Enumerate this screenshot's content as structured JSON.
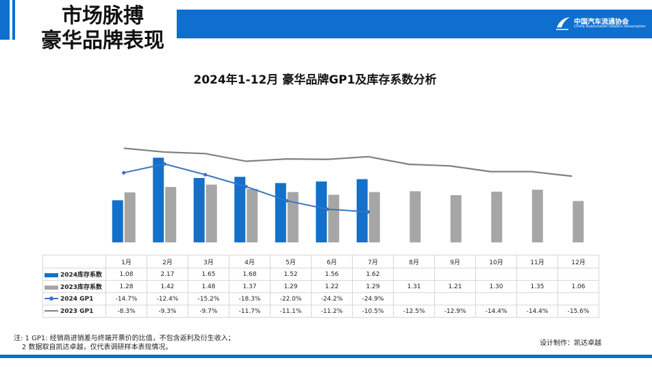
{
  "header": {
    "title_line1": "市场脉搏",
    "title_line2": "豪华品牌表现",
    "logo_cn": "中国汽车流通协会",
    "logo_en": "China Automobile Dealers Association"
  },
  "colors": {
    "accent": "#0e6fcf",
    "bar_2024": "#1470c8",
    "bar_2023": "#a6a6a6",
    "gp1_2024": "#3a74c4",
    "gp1_2023": "#808080"
  },
  "chart_data": {
    "type": "bar",
    "title": "2024年1-12月 豪华品牌GP1及库存系数分析",
    "categories": [
      "1月",
      "2月",
      "3月",
      "4月",
      "5月",
      "6月",
      "7月",
      "8月",
      "9月",
      "10月",
      "11月",
      "12月"
    ],
    "series": [
      {
        "name": "2024库存系数",
        "type": "bar",
        "values": [
          1.08,
          2.17,
          1.65,
          1.68,
          1.52,
          1.56,
          1.62,
          null,
          null,
          null,
          null,
          null
        ],
        "labels": [
          "1.08",
          "2.17",
          "1.65",
          "1.68",
          "1.52",
          "1.56",
          "1.62",
          "",
          "",
          "",
          "",
          ""
        ]
      },
      {
        "name": "2023库存系数",
        "type": "bar",
        "values": [
          1.28,
          1.42,
          1.48,
          1.37,
          1.29,
          1.22,
          1.29,
          1.31,
          1.21,
          1.3,
          1.35,
          1.06
        ],
        "labels": [
          "1.28",
          "1.42",
          "1.48",
          "1.37",
          "1.29",
          "1.22",
          "1.29",
          "1.31",
          "1.21",
          "1.30",
          "1.35",
          "1.06"
        ]
      },
      {
        "name": "2024 GP1",
        "type": "line",
        "values": [
          -14.7,
          -12.4,
          -15.2,
          -18.3,
          -22.0,
          -24.2,
          -24.9,
          null,
          null,
          null,
          null,
          null
        ],
        "labels": [
          "-14.7%",
          "-12.4%",
          "-15.2%",
          "-18.3%",
          "-22.0%",
          "-24.2%",
          "-24.9%",
          "",
          "",
          "",
          "",
          ""
        ]
      },
      {
        "name": "2023 GP1",
        "type": "line",
        "values": [
          -8.3,
          -9.3,
          -9.7,
          -11.7,
          -11.1,
          -11.2,
          -10.5,
          -12.5,
          -12.9,
          -14.4,
          -14.4,
          -15.6
        ],
        "labels": [
          "-8.3%",
          "-9.3%",
          "-9.7%",
          "-11.7%",
          "-11.1%",
          "-11.2%",
          "-10.5%",
          "-12.5%",
          "-12.9%",
          "-14.4%",
          "-14.4%",
          "-15.6%"
        ]
      }
    ],
    "legend": "data-table",
    "grid": false
  },
  "notes": {
    "line1": "注: 1 GP1: 经销商进销差与终端开票价的比值，不包含返利及衍生收入；",
    "line2": "2 数据取自凯达卓越，仅代表调研样本表现情况。"
  },
  "designer": "设计制作：凯达卓越"
}
